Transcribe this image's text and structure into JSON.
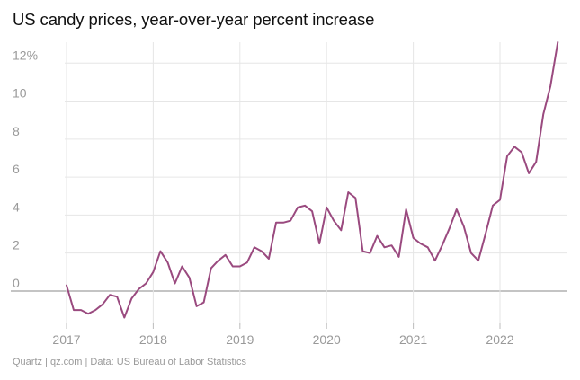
{
  "chart_data": {
    "type": "line",
    "title": "US candy prices, year-over-year percent increase",
    "xlabel": "",
    "ylabel": "",
    "ylim": [
      -1.8,
      13.5
    ],
    "xlim": [
      2016.6,
      2022.8
    ],
    "y_ticks": [
      {
        "value": 12,
        "label": "12%"
      },
      {
        "value": 10,
        "label": "10"
      },
      {
        "value": 8,
        "label": "8"
      },
      {
        "value": 6,
        "label": "6"
      },
      {
        "value": 4,
        "label": "4"
      },
      {
        "value": 2,
        "label": "2"
      },
      {
        "value": 0,
        "label": "0"
      }
    ],
    "x_ticks": [
      {
        "value": 2017,
        "label": "2017"
      },
      {
        "value": 2018,
        "label": "2018"
      },
      {
        "value": 2019,
        "label": "2019"
      },
      {
        "value": 2020,
        "label": "2020"
      },
      {
        "value": 2021,
        "label": "2021"
      },
      {
        "value": 2022,
        "label": "2022"
      }
    ],
    "grid": true,
    "color": "#9a4a7f",
    "series": [
      {
        "name": "US candy prices YoY % change",
        "x": [
          2017.0,
          2017.083,
          2017.167,
          2017.25,
          2017.333,
          2017.417,
          2017.5,
          2017.583,
          2017.667,
          2017.75,
          2017.833,
          2017.917,
          2018.0,
          2018.083,
          2018.167,
          2018.25,
          2018.333,
          2018.417,
          2018.5,
          2018.583,
          2018.667,
          2018.75,
          2018.833,
          2018.917,
          2019.0,
          2019.083,
          2019.167,
          2019.25,
          2019.333,
          2019.417,
          2019.5,
          2019.583,
          2019.667,
          2019.75,
          2019.833,
          2019.917,
          2020.0,
          2020.083,
          2020.167,
          2020.25,
          2020.333,
          2020.417,
          2020.5,
          2020.583,
          2020.667,
          2020.75,
          2020.833,
          2020.917,
          2021.0,
          2021.083,
          2021.167,
          2021.25,
          2021.333,
          2021.417,
          2021.5,
          2021.583,
          2021.667,
          2021.75,
          2021.833,
          2021.917,
          2022.0,
          2022.083,
          2022.167,
          2022.25,
          2022.333,
          2022.417,
          2022.5,
          2022.583,
          2022.667
        ],
        "values": [
          0.3,
          -1.0,
          -1.0,
          -1.2,
          -1.0,
          -0.7,
          -0.2,
          -0.3,
          -1.4,
          -0.4,
          0.1,
          0.4,
          1.0,
          2.1,
          1.5,
          0.4,
          1.3,
          0.7,
          -0.8,
          -0.6,
          1.2,
          1.6,
          1.9,
          1.3,
          1.3,
          1.5,
          2.3,
          2.1,
          1.7,
          3.6,
          3.6,
          3.7,
          4.4,
          4.5,
          4.2,
          2.5,
          4.4,
          3.7,
          3.2,
          5.2,
          4.9,
          2.1,
          2.0,
          2.9,
          2.3,
          2.4,
          1.8,
          4.3,
          2.8,
          2.5,
          2.3,
          1.6,
          2.4,
          3.3,
          4.3,
          3.4,
          2.0,
          1.6,
          3.0,
          4.5,
          4.8,
          7.1,
          7.6,
          7.3,
          6.2,
          6.8,
          9.3,
          10.8,
          13.1
        ]
      }
    ]
  },
  "footer": "Quartz | qz.com | Data: US Bureau of Labor Statistics"
}
